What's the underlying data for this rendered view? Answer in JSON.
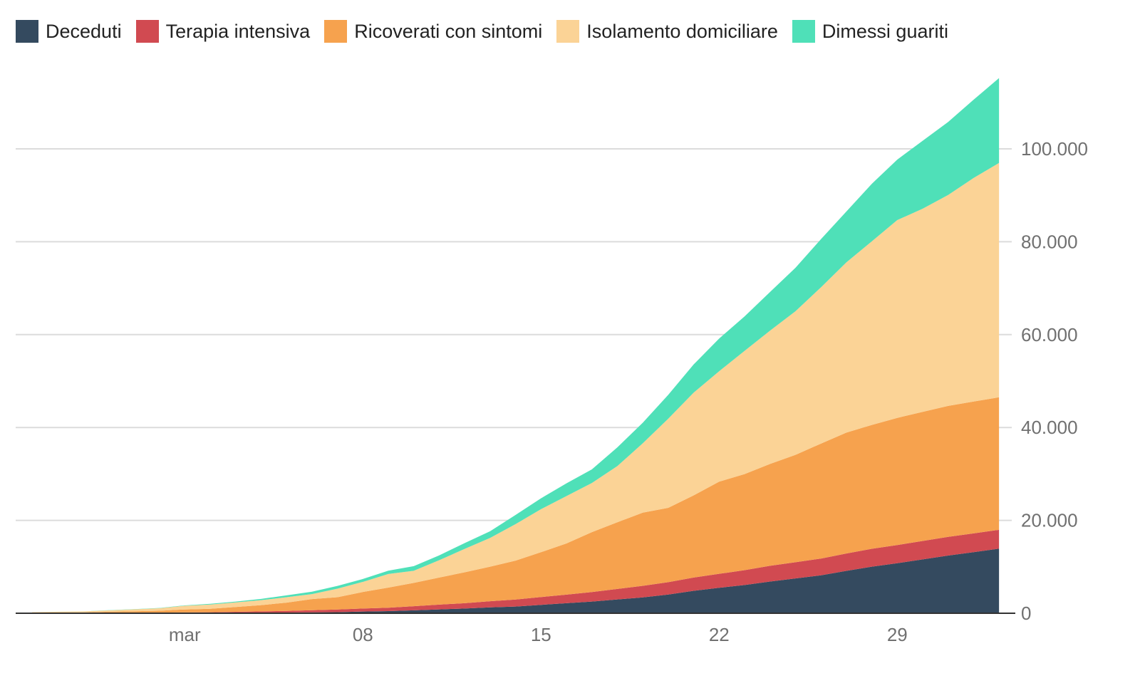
{
  "chart_data": {
    "type": "area",
    "stacked": true,
    "title": "",
    "xlabel": "",
    "ylabel": "",
    "x_start": "2020-02-24",
    "x_end": "2020-04-02",
    "ylim": [
      0,
      115000
    ],
    "grid": true,
    "legend_position": "top-left",
    "x_ticks": [
      {
        "day_index": 6,
        "label": "mar"
      },
      {
        "day_index": 13,
        "label": "08"
      },
      {
        "day_index": 20,
        "label": "15"
      },
      {
        "day_index": 27,
        "label": "22"
      },
      {
        "day_index": 34,
        "label": "29"
      }
    ],
    "y_ticks": [
      {
        "value": 0,
        "label": "0"
      },
      {
        "value": 20000,
        "label": "20.000"
      },
      {
        "value": 40000,
        "label": "40.000"
      },
      {
        "value": 60000,
        "label": "60.000"
      },
      {
        "value": 80000,
        "label": "80.000"
      },
      {
        "value": 100000,
        "label": "100.000"
      }
    ],
    "series": [
      {
        "name": "Deceduti",
        "color": "#344a5f",
        "values": [
          7,
          10,
          12,
          17,
          21,
          29,
          34,
          52,
          79,
          107,
          148,
          197,
          233,
          366,
          463,
          631,
          827,
          1016,
          1266,
          1441,
          1809,
          2158,
          2503,
          2978,
          3405,
          4032,
          4825,
          5476,
          6077,
          6820,
          7503,
          8165,
          9134,
          10023,
          10779,
          11591,
          12428,
          13155,
          13915
        ]
      },
      {
        "name": "Terapia intensiva",
        "color": "#d14a51",
        "values": [
          26,
          35,
          36,
          56,
          64,
          105,
          140,
          166,
          229,
          295,
          351,
          462,
          567,
          650,
          733,
          877,
          1028,
          1153,
          1328,
          1518,
          1672,
          1851,
          2060,
          2257,
          2498,
          2655,
          2857,
          3009,
          3204,
          3396,
          3489,
          3612,
          3732,
          3856,
          3906,
          3981,
          4023,
          4035,
          4053
        ]
      },
      {
        "name": "Ricoverati con sintomi",
        "color": "#f6a24e",
        "values": [
          101,
          114,
          128,
          248,
          345,
          401,
          639,
          742,
          1034,
          1346,
          1790,
          2394,
          2651,
          3557,
          4316,
          5038,
          5838,
          6650,
          7426,
          8372,
          9663,
          11025,
          12894,
          14363,
          15757,
          16020,
          17708,
          19846,
          20692,
          21937,
          23112,
          24753,
          26029,
          26676,
          27386,
          27795,
          28192,
          28403,
          28540
        ]
      },
      {
        "name": "Isolamento domiciliare",
        "color": "#fbd396",
        "values": [
          94,
          162,
          221,
          284,
          412,
          543,
          798,
          927,
          1000,
          1065,
          1155,
          1060,
          1843,
          2180,
          2936,
          2599,
          3724,
          5036,
          6201,
          7860,
          9268,
          10197,
          10590,
          12090,
          14935,
          19185,
          22116,
          23783,
          26522,
          28697,
          30920,
          33648,
          36653,
          39533,
          42588,
          43752,
          45420,
          48134,
          50456
        ]
      },
      {
        "name": "Dimessi guariti",
        "color": "#4fe0b8",
        "values": [
          1,
          1,
          3,
          45,
          46,
          50,
          83,
          149,
          160,
          276,
          414,
          523,
          589,
          622,
          724,
          1004,
          1045,
          1258,
          1439,
          1966,
          2335,
          2749,
          2941,
          4025,
          4440,
          5129,
          6072,
          7024,
          7432,
          8326,
          9362,
          10361,
          10950,
          12384,
          13030,
          14620,
          15729,
          16847,
          18278
        ]
      }
    ]
  }
}
